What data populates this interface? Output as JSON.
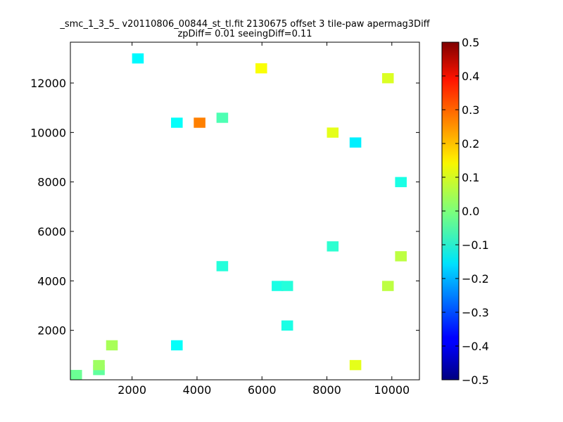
{
  "chart_data": {
    "type": "heatmap",
    "title": "_smc_1_3_5_ v20110806_00844_st_tl.fit 2130675 offset 3 tile-paw apermag3Diff",
    "subtitle": "zpDiff= 0.01 seeingDiff=0.11",
    "xlabel": "",
    "ylabel": "",
    "xlim": [
      100,
      10850
    ],
    "ylim": [
      0,
      13650
    ],
    "xticks": [
      2000,
      4000,
      6000,
      8000,
      10000
    ],
    "yticks": [
      2000,
      4000,
      6000,
      8000,
      10000,
      12000
    ],
    "colorbar": {
      "colormap": "jet",
      "vmin": -0.5,
      "vmax": 0.5,
      "ticks": [
        "0.5",
        "0.4",
        "0.3",
        "0.2",
        "0.1",
        "0.0",
        "−0.1",
        "−0.2",
        "−0.3",
        "−0.4",
        "−0.5"
      ]
    },
    "grid": false,
    "cell_size": [
      350,
      400
    ],
    "x_bins": 31,
    "y_bins": 34,
    "cells": [
      {
        "x": 100,
        "y": 0,
        "value": -0.02
      },
      {
        "x": 800,
        "y": 200,
        "value": -0.03
      },
      {
        "x": 800,
        "y": 400,
        "value": 0.03
      },
      {
        "x": 1200,
        "y": 1200,
        "value": 0.04
      },
      {
        "x": 3200,
        "y": 1200,
        "value": -0.12
      },
      {
        "x": 6600,
        "y": 2000,
        "value": -0.1
      },
      {
        "x": 8700,
        "y": 400,
        "value": 0.1
      },
      {
        "x": 3900,
        "y": 10200,
        "value": 0.25
      },
      {
        "x": 3200,
        "y": 10200,
        "value": -0.12
      },
      {
        "x": 4600,
        "y": 10400,
        "value": -0.05
      },
      {
        "x": 5800,
        "y": 12400,
        "value": 0.12
      },
      {
        "x": 2000,
        "y": 12800,
        "value": -0.13
      },
      {
        "x": 9700,
        "y": 12000,
        "value": 0.09
      },
      {
        "x": 8000,
        "y": 9800,
        "value": 0.1
      },
      {
        "x": 8700,
        "y": 9400,
        "value": -0.14
      },
      {
        "x": 10100,
        "y": 7800,
        "value": -0.1
      },
      {
        "x": 8000,
        "y": 5200,
        "value": -0.08
      },
      {
        "x": 4600,
        "y": 4400,
        "value": -0.09
      },
      {
        "x": 6300,
        "y": 3600,
        "value": -0.1
      },
      {
        "x": 6600,
        "y": 3600,
        "value": -0.09
      },
      {
        "x": 9700,
        "y": 3600,
        "value": 0.06
      },
      {
        "x": 10100,
        "y": 4800,
        "value": 0.06
      }
    ]
  }
}
